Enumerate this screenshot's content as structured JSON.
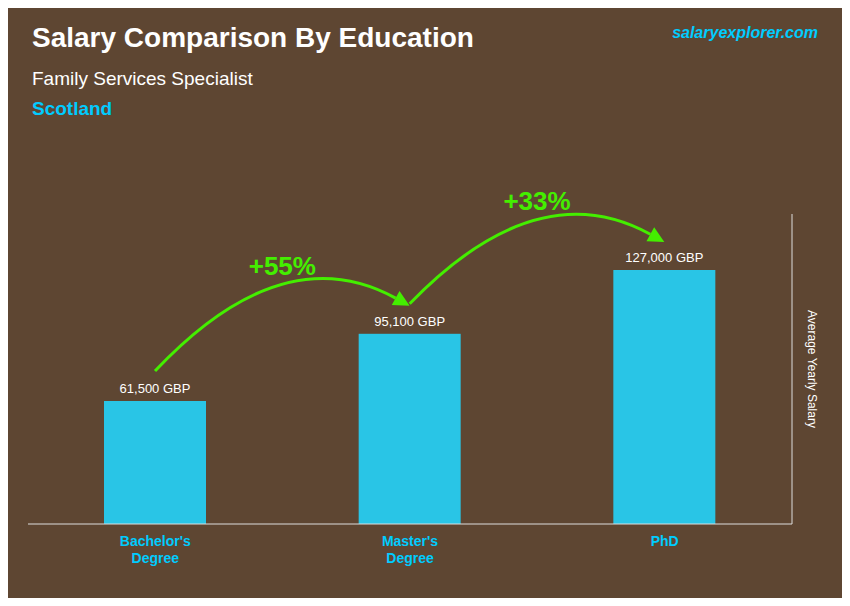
{
  "chart_data": {
    "type": "bar",
    "title": "Salary Comparison By Education",
    "subtitle": [
      "Family Services Specialist",
      "Scotland"
    ],
    "categories": [
      "Bachelor's\nDegree",
      "Master's\nDegree",
      "PhD"
    ],
    "values": [
      61500,
      95100,
      127000
    ],
    "value_labels": [
      "61,500 GBP",
      "95,100 GBP",
      "127,000 GBP"
    ],
    "data_labels": true,
    "color": "#29c5e6",
    "ylim": [
      0,
      155000
    ],
    "ylabel": "Average Yearly Salary",
    "tick_labels": "x",
    "grid": false,
    "annotations": [
      {
        "text": "+55%",
        "from": "Bachelor's\nDegree",
        "to": "Master's\nDegree",
        "color": "#44ee00"
      },
      {
        "text": "+33%",
        "from": "Master's\nDegree",
        "to": "PhD",
        "color": "#44ee00"
      },
      {
        "text": "salaryexplorer.com"
      }
    ]
  }
}
